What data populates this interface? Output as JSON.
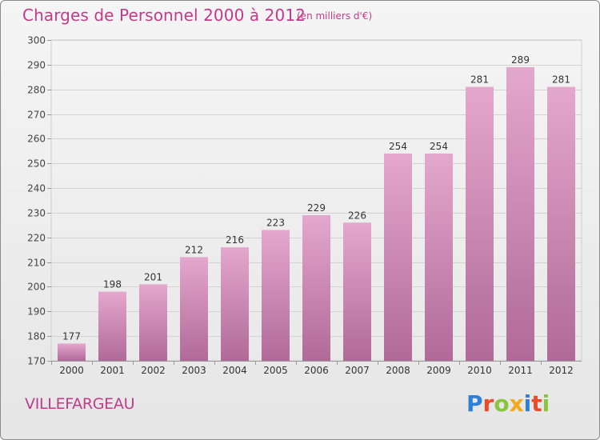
{
  "header": {
    "title": "Charges de Personnel 2000 à 2012",
    "unit": "(en milliers d'€)"
  },
  "footer": {
    "commune": "VILLEFARGEAU",
    "logo_text": "Proxiti"
  },
  "colors": {
    "title": "#c23a8a",
    "bar_top": "#e4a7cd",
    "bar_bottom": "#b06a98",
    "background": "#eeeeee",
    "logo_letters": [
      "#2f7fd8",
      "#e94b2b",
      "#8bc53f",
      "#f4a81d",
      "#2f7fd8",
      "#e94b2b",
      "#8bc53f"
    ]
  },
  "chart_data": {
    "type": "bar",
    "categories": [
      "2000",
      "2001",
      "2002",
      "2003",
      "2004",
      "2005",
      "2006",
      "2007",
      "2008",
      "2009",
      "2010",
      "2011",
      "2012"
    ],
    "values": [
      177,
      198,
      201,
      212,
      216,
      223,
      229,
      226,
      254,
      254,
      281,
      289,
      281
    ],
    "ylim": [
      170,
      300
    ],
    "yticks": [
      170,
      180,
      190,
      200,
      210,
      220,
      230,
      240,
      250,
      260,
      270,
      280,
      290,
      300
    ],
    "grid": true,
    "data_labels": true
  }
}
